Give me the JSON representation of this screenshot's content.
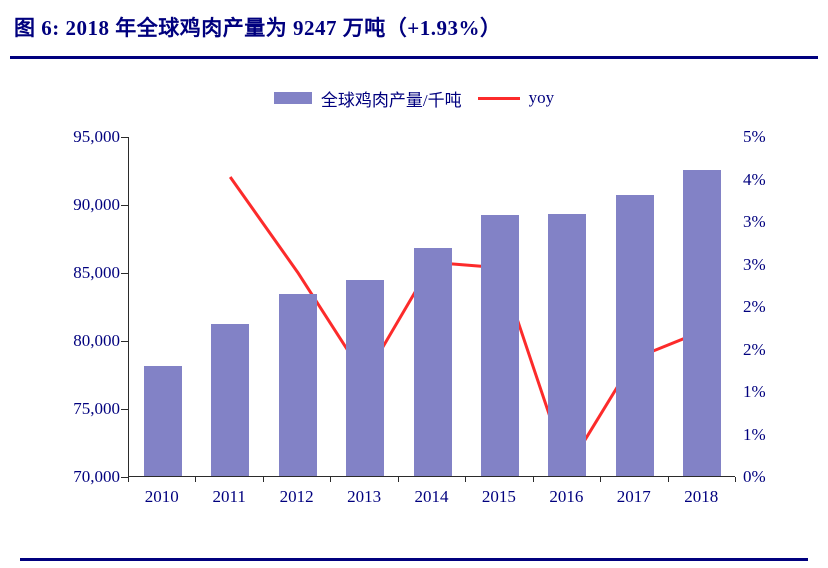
{
  "page": {
    "title": "图 6:  2018 年全球鸡肉产量为 9247 万吨（+1.93%）"
  },
  "legend": {
    "bars_label": "全球鸡肉产量/千吨",
    "line_label": "yoy"
  },
  "colors": {
    "bar": "#8282C6",
    "line": "#FC2B2B",
    "title": "#00007E",
    "axis_text": "#00007E",
    "rule": "#00007E"
  },
  "chart_data": {
    "type": "bar+line",
    "title": "2018 年全球鸡肉产量为 9247 万吨（+1.93%）",
    "figure_label": "图 6:",
    "categories": [
      "2010",
      "2011",
      "2012",
      "2013",
      "2014",
      "2015",
      "2016",
      "2017",
      "2018"
    ],
    "series": [
      {
        "name": "全球鸡肉产量/千吨",
        "type": "bar",
        "axis": "left",
        "values": [
          78100,
          81200,
          83400,
          84400,
          86800,
          89200,
          89300,
          90700,
          92470
        ]
      },
      {
        "name": "yoy",
        "type": "line",
        "axis": "right",
        "values": [
          null,
          3.97,
          2.71,
          1.32,
          2.84,
          2.77,
          0.11,
          1.57,
          1.93
        ]
      }
    ],
    "left_axis": {
      "min": 70000,
      "max": 95000,
      "tick_labels": [
        "95,000",
        "90,000",
        "85,000",
        "80,000",
        "75,000",
        "70,000"
      ]
    },
    "right_axis": {
      "min": 0,
      "max": 4.5,
      "unit": "%",
      "tick_labels": [
        "5%",
        "4%",
        "3%",
        "3%",
        "2%",
        "2%",
        "1%",
        "1%",
        "0%"
      ]
    },
    "grid": false,
    "legend_position": "top"
  }
}
